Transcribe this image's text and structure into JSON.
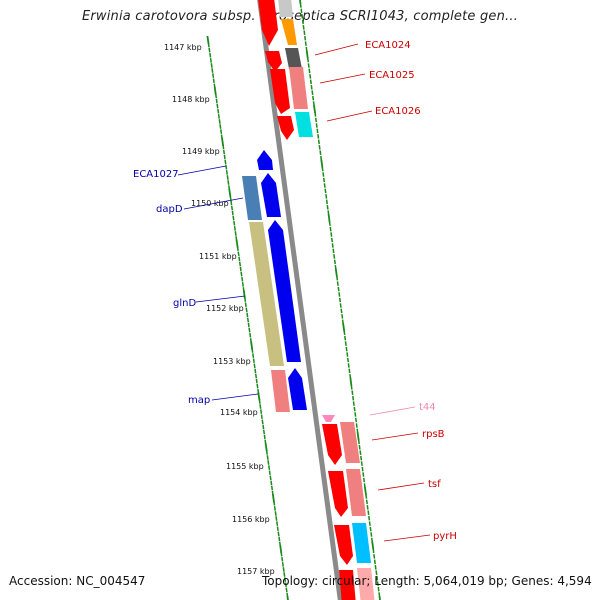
{
  "title": "Erwinia carotovora subsp. atroseptica SCRI1043, complete gen...",
  "footer": {
    "accession_label": "Accession:",
    "accession": "NC_004547",
    "topology_label": "Topology:",
    "topology": "circular;",
    "length_label": "Length:",
    "length": "5,064,019 bp;",
    "genes_label": "Genes:",
    "genes": "4,594"
  },
  "ticks": [
    {
      "label": "1147 kbp",
      "kbp": 1147
    },
    {
      "label": "1148 kbp",
      "kbp": 1148
    },
    {
      "label": "1149 kbp",
      "kbp": 1149
    },
    {
      "label": "1150 kbp",
      "kbp": 1150
    },
    {
      "label": "1151 kbp",
      "kbp": 1151
    },
    {
      "label": "1152 kbp",
      "kbp": 1152
    },
    {
      "label": "1153 kbp",
      "kbp": 1153
    },
    {
      "label": "1154 kbp",
      "kbp": 1154
    },
    {
      "label": "1155 kbp",
      "kbp": 1155
    },
    {
      "label": "1156 kbp",
      "kbp": 1156
    },
    {
      "label": "1157 kbp",
      "kbp": 1157
    }
  ],
  "colors": {
    "backbone": "#8a8a8a",
    "forward_label": "#cc0000",
    "reverse_label": "#0000aa",
    "trna_label": "#ee88aa",
    "tick": "#1a8a1a"
  },
  "gene_labels": [
    {
      "text": "ECA1024",
      "strand": "forward"
    },
    {
      "text": "ECA1025",
      "strand": "forward"
    },
    {
      "text": "ECA1026",
      "strand": "forward"
    },
    {
      "text": "ECA1027",
      "strand": "reverse"
    },
    {
      "text": "dapD",
      "strand": "reverse"
    },
    {
      "text": "glnD",
      "strand": "reverse"
    },
    {
      "text": "map",
      "strand": "reverse"
    },
    {
      "text": "t44",
      "strand": "trna"
    },
    {
      "text": "rpsB",
      "strand": "forward"
    },
    {
      "text": "tsf",
      "strand": "forward"
    },
    {
      "text": "pyrH",
      "strand": "forward"
    }
  ]
}
